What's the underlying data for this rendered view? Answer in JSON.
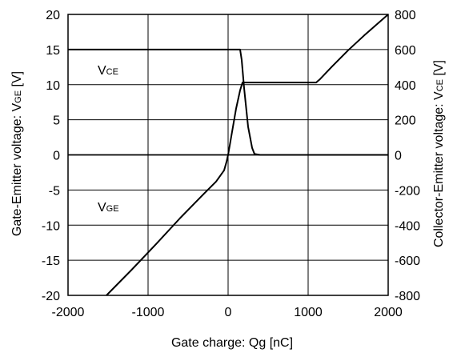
{
  "chart_data": {
    "type": "line",
    "xlabel": "Gate charge: Qg [nC]",
    "ylabel_left": {
      "main": "Gate-Emitter voltage:  V",
      "sub": "GE",
      "unit": " [V]"
    },
    "ylabel_right": {
      "main": "Collector-Emitter voltage: V",
      "sub": "CE",
      "unit": " [V]"
    },
    "xlim": [
      -2000,
      2000
    ],
    "ylim_left": [
      -20,
      20
    ],
    "ylim_right": [
      -800,
      800
    ],
    "x_ticks": [
      "-2000",
      "-1000",
      "0",
      "1000",
      "2000"
    ],
    "y_ticks_left": [
      "20",
      "15",
      "10",
      "5",
      "0",
      "-5",
      "-10",
      "-15",
      "-20"
    ],
    "y_ticks_right": [
      "800",
      "600",
      "400",
      "200",
      "0",
      "-200",
      "-400",
      "-600",
      "-800"
    ],
    "grid": true,
    "annotations": [
      {
        "main": "V",
        "sub": "CE"
      },
      {
        "main": "V",
        "sub": "GE"
      }
    ],
    "series": [
      {
        "axis": "left",
        "x": [
          -1520,
          -1200,
          -900,
          -600,
          -300,
          -150,
          -50,
          -20,
          0,
          50,
          100,
          150,
          180,
          190,
          1100,
          1150,
          1300,
          1500,
          1700,
          2000
        ],
        "y": [
          -20,
          -16.3,
          -12.7,
          -9.0,
          -5.5,
          -3.8,
          -2.2,
          -1.0,
          0,
          3.3,
          6.6,
          9.2,
          10.3,
          10.3,
          10.3,
          10.8,
          12.6,
          14.9,
          17.0,
          20
        ]
      },
      {
        "axis": "right",
        "x": [
          -2000,
          150,
          170,
          200,
          250,
          300,
          330,
          400,
          2000
        ],
        "y": [
          600,
          600,
          540,
          380,
          160,
          40,
          5,
          0,
          0
        ]
      }
    ]
  }
}
